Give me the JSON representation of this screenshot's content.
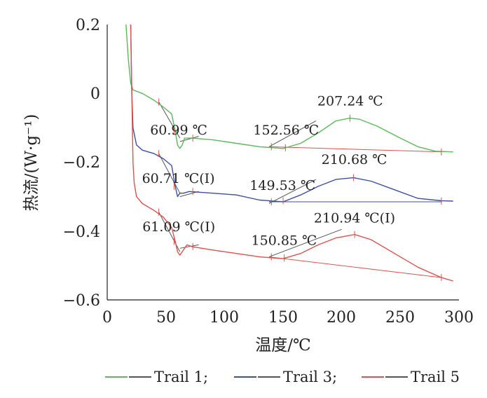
{
  "chart_data": {
    "type": "line",
    "xlabel": "温度/℃",
    "ylabel": "热流/(W·g⁻¹)",
    "xlim": [
      0,
      300
    ],
    "ylim": [
      -0.6,
      0.2
    ],
    "x_ticks": [
      "0",
      "50",
      "100",
      "150",
      "200",
      "250",
      "300"
    ],
    "y_ticks": [
      "0.2",
      "0",
      "−0.2",
      "−0.4",
      "−0.6"
    ],
    "grid": false,
    "legend_position": "bottom",
    "series": [
      {
        "name": "Trail 1;",
        "color": "#5cb85c",
        "points": [
          [
            16,
            0.2
          ],
          [
            18,
            0.1
          ],
          [
            20,
            0.03
          ],
          [
            22,
            0.01
          ],
          [
            30,
            0.0
          ],
          [
            40,
            -0.02
          ],
          [
            48,
            -0.04
          ],
          [
            55,
            -0.06
          ],
          [
            58,
            -0.11
          ],
          [
            60,
            -0.15
          ],
          [
            62,
            -0.16
          ],
          [
            64,
            -0.15
          ],
          [
            66,
            -0.13
          ],
          [
            72,
            -0.13
          ],
          [
            90,
            -0.135
          ],
          [
            110,
            -0.145
          ],
          [
            130,
            -0.155
          ],
          [
            150,
            -0.16
          ],
          [
            165,
            -0.145
          ],
          [
            180,
            -0.115
          ],
          [
            195,
            -0.08
          ],
          [
            207,
            -0.072
          ],
          [
            215,
            -0.075
          ],
          [
            230,
            -0.095
          ],
          [
            250,
            -0.13
          ],
          [
            265,
            -0.155
          ],
          [
            280,
            -0.168
          ],
          [
            295,
            -0.17
          ]
        ]
      },
      {
        "name": "Trail 3;",
        "color": "#3d4fa0",
        "points": [
          [
            20,
            0.2
          ],
          [
            21,
            0.0
          ],
          [
            22,
            -0.1
          ],
          [
            25,
            -0.15
          ],
          [
            30,
            -0.165
          ],
          [
            40,
            -0.175
          ],
          [
            48,
            -0.19
          ],
          [
            55,
            -0.21
          ],
          [
            58,
            -0.27
          ],
          [
            60,
            -0.3
          ],
          [
            62,
            -0.29
          ],
          [
            65,
            -0.29
          ],
          [
            70,
            -0.285
          ],
          [
            90,
            -0.29
          ],
          [
            110,
            -0.295
          ],
          [
            130,
            -0.31
          ],
          [
            150,
            -0.315
          ],
          [
            165,
            -0.295
          ],
          [
            180,
            -0.27
          ],
          [
            195,
            -0.25
          ],
          [
            210,
            -0.245
          ],
          [
            225,
            -0.255
          ],
          [
            245,
            -0.28
          ],
          [
            265,
            -0.305
          ],
          [
            285,
            -0.312
          ],
          [
            295,
            -0.313
          ]
        ]
      },
      {
        "name": "Trail 5",
        "color": "#d9534f",
        "points": [
          [
            20,
            0.2
          ],
          [
            21,
            0.0
          ],
          [
            22,
            -0.2
          ],
          [
            23,
            -0.26
          ],
          [
            25,
            -0.3
          ],
          [
            30,
            -0.32
          ],
          [
            40,
            -0.34
          ],
          [
            48,
            -0.36
          ],
          [
            55,
            -0.39
          ],
          [
            58,
            -0.43
          ],
          [
            60,
            -0.46
          ],
          [
            62,
            -0.47
          ],
          [
            64,
            -0.46
          ],
          [
            68,
            -0.44
          ],
          [
            72,
            -0.445
          ],
          [
            90,
            -0.455
          ],
          [
            110,
            -0.465
          ],
          [
            130,
            -0.475
          ],
          [
            150,
            -0.48
          ],
          [
            165,
            -0.465
          ],
          [
            180,
            -0.44
          ],
          [
            195,
            -0.42
          ],
          [
            211,
            -0.41
          ],
          [
            225,
            -0.425
          ],
          [
            245,
            -0.465
          ],
          [
            265,
            -0.505
          ],
          [
            285,
            -0.535
          ],
          [
            295,
            -0.545
          ]
        ]
      }
    ],
    "annotations": [
      {
        "text": "60.99 ℃",
        "x": 60.99,
        "y": -0.12
      },
      {
        "text": "152.56 ℃",
        "x": 152.56,
        "y": -0.12
      },
      {
        "text": "207.24 ℃",
        "x": 207.24,
        "y": -0.035
      },
      {
        "text": "60.71 ℃(I)",
        "x": 60.71,
        "y": -0.26
      },
      {
        "text": "149.53 ℃",
        "x": 149.53,
        "y": -0.28
      },
      {
        "text": "210.68 ℃",
        "x": 210.68,
        "y": -0.205
      },
      {
        "text": "61.09 ℃(I)",
        "x": 61.09,
        "y": -0.4
      },
      {
        "text": "150.85 ℃",
        "x": 150.85,
        "y": -0.44
      },
      {
        "text": "210.94 ℃(I)",
        "x": 210.94,
        "y": -0.375
      }
    ],
    "tangent_lines": [
      {
        "color": "#555555",
        "x": [
          44,
          62
        ],
        "y": [
          -0.025,
          -0.13
        ]
      },
      {
        "color": "#555555",
        "x": [
          62,
          78
        ],
        "y": [
          -0.14,
          -0.125
        ]
      },
      {
        "color": "#555555",
        "x": [
          138,
          178
        ],
        "y": [
          -0.155,
          -0.08
        ]
      },
      {
        "color": "#d9534f",
        "x": [
          138,
          285
        ],
        "y": [
          -0.155,
          -0.17
        ]
      },
      {
        "color": "#555555",
        "x": [
          44,
          62
        ],
        "y": [
          -0.175,
          -0.29
        ]
      },
      {
        "color": "#555555",
        "x": [
          62,
          78
        ],
        "y": [
          -0.3,
          -0.285
        ]
      },
      {
        "color": "#555555",
        "x": [
          138,
          178
        ],
        "y": [
          -0.32,
          -0.25
        ]
      },
      {
        "color": "#3d4fa0",
        "x": [
          138,
          285
        ],
        "y": [
          -0.315,
          -0.315
        ]
      },
      {
        "color": "#555555",
        "x": [
          44,
          62
        ],
        "y": [
          -0.345,
          -0.46
        ]
      },
      {
        "color": "#555555",
        "x": [
          62,
          78
        ],
        "y": [
          -0.45,
          -0.44
        ]
      },
      {
        "color": "#555555",
        "x": [
          138,
          200
        ],
        "y": [
          -0.475,
          -0.395
        ]
      },
      {
        "color": "#d9534f",
        "x": [
          138,
          285
        ],
        "y": [
          -0.475,
          -0.535
        ]
      }
    ],
    "marker_points": [
      {
        "color": "#d9534f",
        "x": [
          44,
          57,
          73,
          140,
          152,
          207,
          285
        ],
        "y": [
          -0.025,
          -0.11,
          -0.13,
          -0.155,
          -0.158,
          -0.072,
          -0.17
        ]
      },
      {
        "color": "#d9534f",
        "x": [
          44,
          57,
          73,
          140,
          150,
          210,
          285
        ],
        "y": [
          -0.175,
          -0.27,
          -0.285,
          -0.315,
          -0.312,
          -0.245,
          -0.313
        ]
      },
      {
        "color": "#d9534f",
        "x": [
          44,
          57,
          73,
          140,
          151,
          211,
          285
        ],
        "y": [
          -0.345,
          -0.43,
          -0.445,
          -0.475,
          -0.478,
          -0.41,
          -0.535
        ]
      }
    ]
  }
}
